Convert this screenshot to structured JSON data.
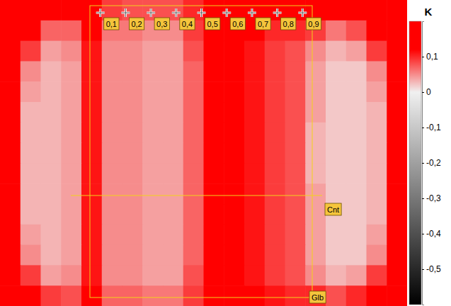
{
  "chart_data": {
    "type": "heatmap",
    "tick_labels": false,
    "cells": [
      [
        0.16,
        0.16,
        0.14,
        0.12,
        0.13,
        0.09,
        0.08,
        0.08,
        0.08,
        0.1,
        0.14,
        0.15,
        0.13,
        0.12,
        0.12,
        0.13,
        0.15,
        0.16,
        0.16,
        0.16
      ],
      [
        0.16,
        0.13,
        0.07,
        0.07,
        0.12,
        0.06,
        0.06,
        0.05,
        0.05,
        0.09,
        0.14,
        0.15,
        0.12,
        0.1,
        0.1,
        0.09,
        0.06,
        0.08,
        0.14,
        0.16
      ],
      [
        0.16,
        0.09,
        0.04,
        0.05,
        0.11,
        0.05,
        0.05,
        0.04,
        0.04,
        0.08,
        0.14,
        0.15,
        0.11,
        0.09,
        0.08,
        0.05,
        0.03,
        0.04,
        0.09,
        0.16
      ],
      [
        0.15,
        0.05,
        0.03,
        0.04,
        0.11,
        0.05,
        0.05,
        0.04,
        0.04,
        0.07,
        0.14,
        0.15,
        0.11,
        0.09,
        0.08,
        0.04,
        0.02,
        0.02,
        0.05,
        0.15
      ],
      [
        0.14,
        0.04,
        0.03,
        0.04,
        0.11,
        0.05,
        0.05,
        0.04,
        0.04,
        0.07,
        0.14,
        0.15,
        0.11,
        0.09,
        0.08,
        0.04,
        0.02,
        0.02,
        0.04,
        0.14
      ],
      [
        0.13,
        0.03,
        0.03,
        0.04,
        0.11,
        0.05,
        0.05,
        0.04,
        0.04,
        0.07,
        0.14,
        0.15,
        0.11,
        0.09,
        0.08,
        0.04,
        0.02,
        0.02,
        0.03,
        0.13
      ],
      [
        0.12,
        0.03,
        0.03,
        0.04,
        0.11,
        0.05,
        0.05,
        0.04,
        0.04,
        0.07,
        0.14,
        0.15,
        0.11,
        0.09,
        0.08,
        0.03,
        0.02,
        0.02,
        0.03,
        0.12
      ],
      [
        0.12,
        0.03,
        0.03,
        0.04,
        0.11,
        0.05,
        0.05,
        0.04,
        0.04,
        0.07,
        0.14,
        0.15,
        0.11,
        0.09,
        0.08,
        0.03,
        0.02,
        0.02,
        0.03,
        0.12
      ],
      [
        0.12,
        0.03,
        0.03,
        0.04,
        0.11,
        0.05,
        0.05,
        0.04,
        0.04,
        0.07,
        0.14,
        0.15,
        0.11,
        0.09,
        0.08,
        0.03,
        0.02,
        0.02,
        0.03,
        0.12
      ],
      [
        0.13,
        0.03,
        0.03,
        0.04,
        0.11,
        0.05,
        0.05,
        0.04,
        0.04,
        0.07,
        0.14,
        0.15,
        0.11,
        0.09,
        0.08,
        0.04,
        0.02,
        0.02,
        0.03,
        0.13
      ],
      [
        0.13,
        0.03,
        0.03,
        0.04,
        0.11,
        0.05,
        0.05,
        0.04,
        0.04,
        0.07,
        0.14,
        0.15,
        0.11,
        0.09,
        0.08,
        0.04,
        0.02,
        0.02,
        0.03,
        0.13
      ],
      [
        0.14,
        0.04,
        0.03,
        0.04,
        0.11,
        0.05,
        0.05,
        0.04,
        0.04,
        0.07,
        0.14,
        0.15,
        0.11,
        0.09,
        0.08,
        0.04,
        0.02,
        0.02,
        0.04,
        0.14
      ],
      [
        0.15,
        0.05,
        0.03,
        0.04,
        0.11,
        0.05,
        0.05,
        0.04,
        0.04,
        0.07,
        0.14,
        0.15,
        0.11,
        0.09,
        0.08,
        0.04,
        0.02,
        0.02,
        0.05,
        0.15
      ],
      [
        0.16,
        0.09,
        0.04,
        0.05,
        0.11,
        0.05,
        0.05,
        0.04,
        0.04,
        0.08,
        0.14,
        0.15,
        0.11,
        0.09,
        0.08,
        0.05,
        0.03,
        0.04,
        0.09,
        0.16
      ],
      [
        0.16,
        0.14,
        0.09,
        0.08,
        0.12,
        0.07,
        0.07,
        0.06,
        0.06,
        0.09,
        0.14,
        0.15,
        0.12,
        0.11,
        0.1,
        0.1,
        0.08,
        0.1,
        0.15,
        0.16
      ]
    ],
    "colorbar": {
      "title": "K",
      "lim": [
        -0.6,
        0.2
      ],
      "ticks": [
        {
          "value": 0.1,
          "label": "0,1"
        },
        0,
        {
          "value": -0.1,
          "label": "-0,1"
        },
        {
          "value": -0.2,
          "label": "-0,2"
        },
        {
          "value": -0.3,
          "label": "-0,3"
        },
        {
          "value": -0.4,
          "label": "-0,4"
        },
        {
          "value": -0.5,
          "label": "-0,5"
        }
      ]
    },
    "markers": [
      {
        "value": 0.1,
        "label": "0,1"
      },
      {
        "value": 0.2,
        "label": "0,2"
      },
      {
        "value": 0.3,
        "label": "0,3"
      },
      {
        "value": 0.4,
        "label": "0,4"
      },
      {
        "value": 0.5,
        "label": "0,5"
      },
      {
        "value": 0.6,
        "label": "0,6"
      },
      {
        "value": 0.7,
        "label": "0,7"
      },
      {
        "value": 0.8,
        "label": "0,8"
      },
      {
        "value": 0.9,
        "label": "0,9"
      }
    ],
    "frame_label": "Glb",
    "line_label": "Cnt"
  }
}
